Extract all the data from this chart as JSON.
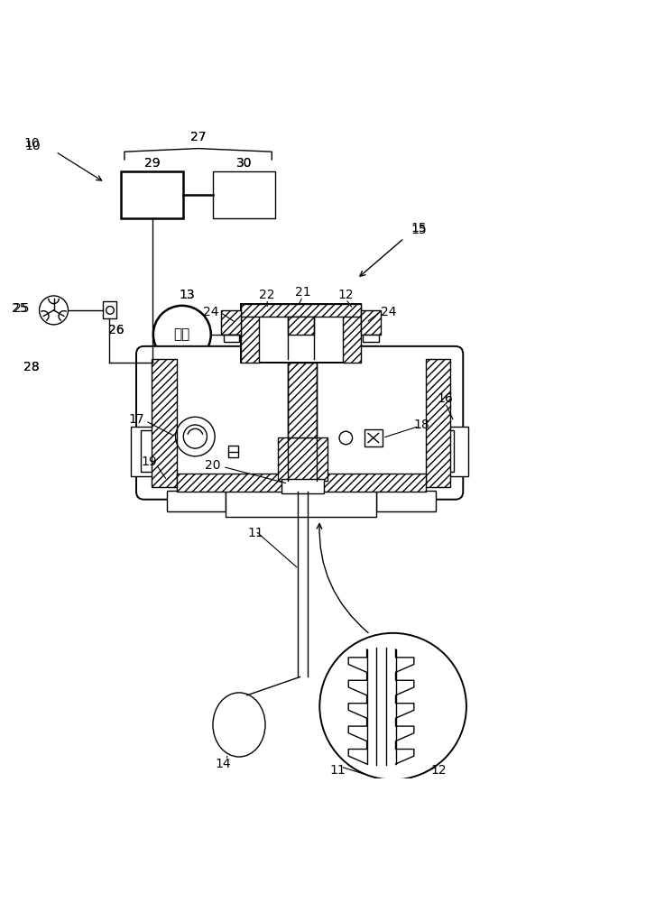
{
  "bg_color": "#ffffff",
  "line_color": "#000000",
  "font_size": 10
}
